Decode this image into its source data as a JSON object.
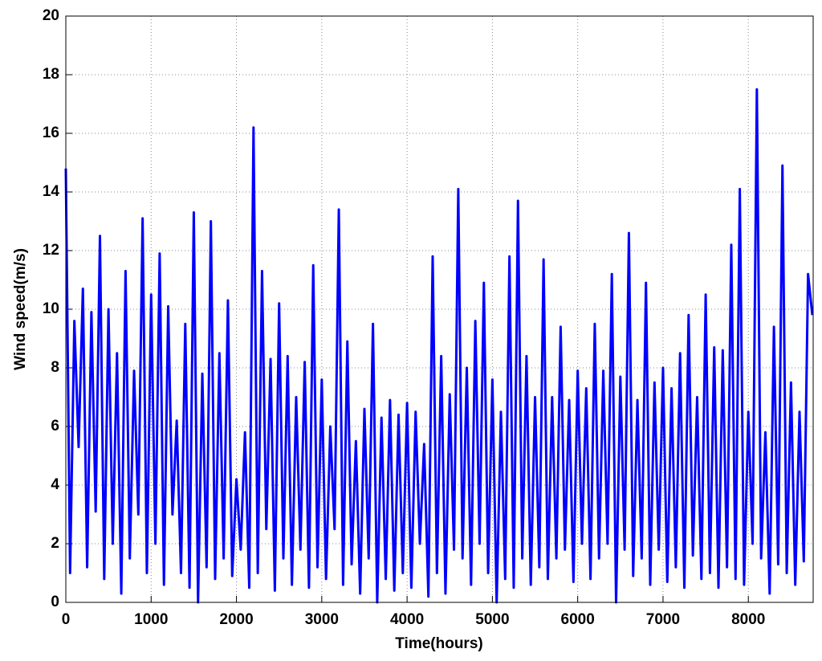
{
  "chart_data": {
    "type": "line",
    "x_label": "Time(hours)",
    "y_label": "Wind speed(m/s)",
    "xlim": [
      0,
      8760
    ],
    "ylim": [
      0,
      20
    ],
    "xticks": [
      0,
      1000,
      2000,
      3000,
      4000,
      5000,
      6000,
      7000,
      8000
    ],
    "yticks": [
      0,
      2,
      4,
      6,
      8,
      10,
      12,
      14,
      16,
      18,
      20
    ],
    "grid": true,
    "x": [
      0,
      50,
      100,
      150,
      200,
      250,
      300,
      350,
      400,
      450,
      500,
      550,
      600,
      650,
      700,
      750,
      800,
      850,
      900,
      950,
      1000,
      1050,
      1100,
      1150,
      1200,
      1250,
      1300,
      1350,
      1400,
      1450,
      1500,
      1550,
      1600,
      1650,
      1700,
      1750,
      1800,
      1850,
      1900,
      1950,
      2000,
      2050,
      2100,
      2150,
      2200,
      2250,
      2300,
      2350,
      2400,
      2450,
      2500,
      2550,
      2600,
      2650,
      2700,
      2750,
      2800,
      2850,
      2900,
      2950,
      3000,
      3050,
      3100,
      3150,
      3200,
      3250,
      3300,
      3350,
      3400,
      3450,
      3500,
      3550,
      3600,
      3650,
      3700,
      3750,
      3800,
      3850,
      3900,
      3950,
      4000,
      4050,
      4100,
      4150,
      4200,
      4250,
      4300,
      4350,
      4400,
      4450,
      4500,
      4550,
      4600,
      4650,
      4700,
      4750,
      4800,
      4850,
      4900,
      4950,
      5000,
      5050,
      5100,
      5150,
      5200,
      5250,
      5300,
      5350,
      5400,
      5450,
      5500,
      5550,
      5600,
      5650,
      5700,
      5750,
      5800,
      5850,
      5900,
      5950,
      6000,
      6050,
      6100,
      6150,
      6200,
      6250,
      6300,
      6350,
      6400,
      6450,
      6500,
      6550,
      6600,
      6650,
      6700,
      6750,
      6800,
      6850,
      6900,
      6950,
      7000,
      7050,
      7100,
      7150,
      7200,
      7250,
      7300,
      7350,
      7400,
      7450,
      7500,
      7550,
      7600,
      7650,
      7700,
      7750,
      7800,
      7850,
      7900,
      7950,
      8000,
      8050,
      8100,
      8150,
      8200,
      8250,
      8300,
      8350,
      8400,
      8450,
      8500,
      8550,
      8600,
      8650,
      8700,
      8750
    ],
    "series": [
      {
        "color": "#0000ff",
        "values": [
          14.8,
          1.0,
          9.6,
          5.3,
          10.7,
          1.2,
          9.9,
          3.1,
          12.5,
          0.8,
          10.0,
          2.0,
          8.5,
          0.3,
          11.3,
          1.5,
          7.9,
          3.0,
          13.1,
          1.0,
          10.5,
          2.0,
          11.9,
          0.6,
          10.1,
          3.0,
          6.2,
          1.0,
          9.5,
          0.5,
          13.3,
          0.0,
          7.8,
          1.2,
          13.0,
          0.8,
          8.5,
          1.5,
          10.3,
          0.9,
          4.2,
          1.8,
          5.8,
          0.5,
          16.2,
          1.0,
          11.3,
          2.5,
          8.3,
          0.4,
          10.2,
          1.5,
          8.4,
          0.6,
          7.0,
          1.8,
          8.2,
          0.5,
          11.5,
          1.2,
          7.6,
          0.8,
          6.0,
          2.5,
          13.4,
          0.6,
          8.9,
          1.3,
          5.5,
          0.3,
          6.6,
          1.5,
          9.5,
          0.0,
          6.3,
          0.8,
          6.9,
          0.4,
          6.4,
          1.0,
          6.8,
          0.5,
          6.5,
          2.0,
          5.4,
          0.2,
          11.8,
          1.0,
          8.4,
          0.3,
          7.1,
          1.8,
          14.1,
          1.5,
          8.0,
          0.6,
          9.6,
          2.0,
          10.9,
          1.0,
          7.6,
          0.0,
          6.5,
          0.8,
          11.8,
          0.5,
          13.7,
          1.5,
          8.4,
          0.6,
          7.0,
          1.2,
          11.7,
          0.8,
          7.0,
          1.5,
          9.4,
          1.8,
          6.9,
          0.7,
          7.9,
          2.0,
          7.3,
          0.8,
          9.5,
          1.5,
          7.9,
          2.0,
          11.2,
          0.0,
          7.7,
          1.8,
          12.6,
          0.9,
          6.9,
          1.5,
          10.9,
          0.6,
          7.5,
          1.8,
          8.0,
          0.7,
          7.3,
          1.2,
          8.5,
          0.5,
          9.8,
          1.6,
          7.0,
          0.8,
          10.5,
          1.0,
          8.7,
          0.5,
          8.6,
          1.2,
          12.2,
          0.8,
          14.1,
          0.6,
          6.5,
          2.0,
          17.5,
          1.5,
          5.8,
          0.3,
          9.4,
          1.3,
          14.9,
          1.0,
          7.5,
          0.6,
          6.5,
          1.4,
          11.2,
          9.8
        ]
      }
    ]
  }
}
